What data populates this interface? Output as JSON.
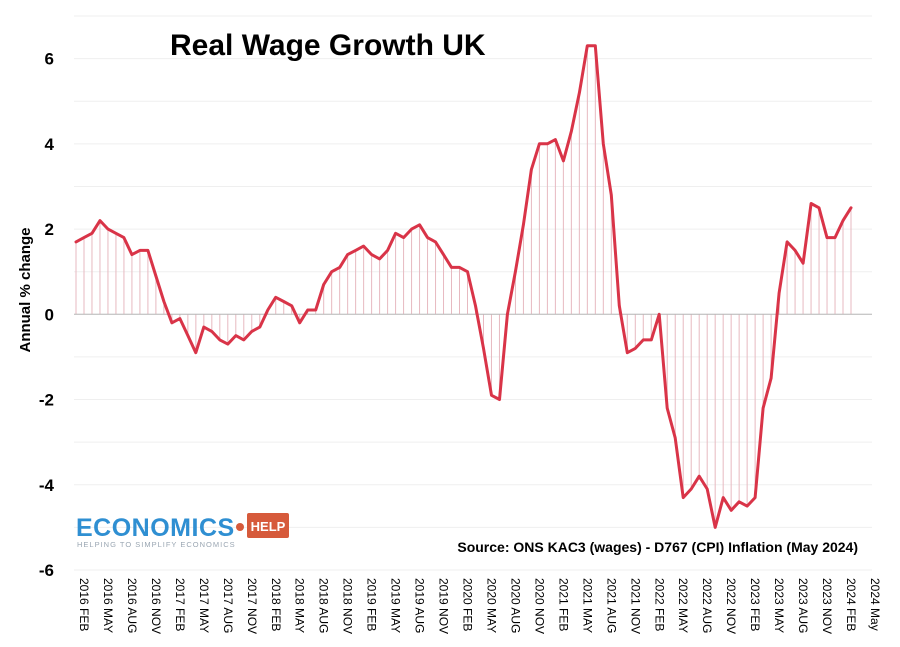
{
  "chart_data": {
    "type": "line",
    "title": "Real Wage Growth UK",
    "ylabel": "Annual % change",
    "ylim": [
      -6,
      7
    ],
    "yticks": [
      6,
      4,
      2,
      0,
      -2,
      -4,
      -6
    ],
    "source_note": "Source: ONS KAC3 (wages) - D767 (CPI) Inflation (May 2024)",
    "x_tick_labels": [
      "2016 FEB",
      "2016 MAY",
      "2016 AUG",
      "2016 NOV",
      "2017 FEB",
      "2017 MAY",
      "2017 AUG",
      "2017 NOV",
      "2018 FEB",
      "2018 MAY",
      "2018 AUG",
      "2018 NOV",
      "2019 FEB",
      "2019 MAY",
      "2019 AUG",
      "2019 NOV",
      "2020 FEB",
      "2020 MAY",
      "2020 AUG",
      "2020 NOV",
      "2021 FEB",
      "2021 MAY",
      "2021 AUG",
      "2021 NOV",
      "2022 FEB",
      "2022 MAY",
      "2022 AUG",
      "2022 NOV",
      "2023 FEB",
      "2023 MAY",
      "2023 AUG",
      "2023 NOV",
      "2024 FEB",
      "2024 May"
    ],
    "line_color": "#d93448",
    "drop_line_color": "#e7b9c0",
    "series": [
      {
        "values": [
          1.7,
          1.8,
          1.9,
          2.2,
          2.0,
          1.9,
          1.8,
          1.4,
          1.5,
          1.5,
          0.9,
          0.3,
          -0.2,
          -0.1,
          -0.5,
          -0.9,
          -0.3,
          -0.4,
          -0.6,
          -0.7,
          -0.5,
          -0.6,
          -0.4,
          -0.3,
          0.1,
          0.4,
          0.3,
          0.2,
          -0.2,
          0.1,
          0.1,
          0.7,
          1.0,
          1.1,
          1.4,
          1.5,
          1.6,
          1.4,
          1.3,
          1.5,
          1.9,
          1.8,
          2.0,
          2.1,
          1.8,
          1.7,
          1.4,
          1.1,
          1.1,
          1.0,
          0.2,
          -0.8,
          -1.9,
          -2.0,
          0.0,
          1.0,
          2.1,
          3.4,
          4.0,
          4.0,
          4.1,
          3.6,
          4.3,
          5.2,
          6.3,
          6.3,
          4.0,
          2.8,
          0.2,
          -0.9,
          -0.8,
          -0.6,
          -0.6,
          0.0,
          -2.2,
          -2.9,
          -4.3,
          -4.1,
          -3.8,
          -4.1,
          -5.0,
          -4.3,
          -4.6,
          -4.4,
          -4.5,
          -4.3,
          -2.2,
          -1.5,
          0.5,
          1.7,
          1.5,
          1.2,
          2.6,
          2.5,
          1.8,
          1.8,
          2.2,
          2.5
        ]
      }
    ]
  },
  "logo": {
    "main": "ECONOMICS",
    "help": "HELP",
    "tagline": "HELPING TO SIMPLIFY ECONOMICS"
  }
}
